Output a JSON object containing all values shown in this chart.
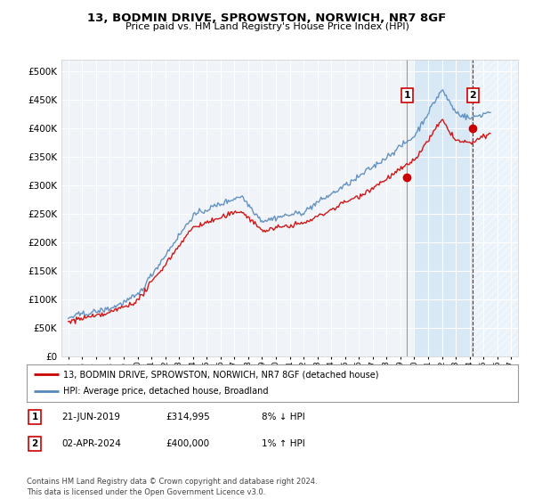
{
  "title": "13, BODMIN DRIVE, SPROWSTON, NORWICH, NR7 8GF",
  "subtitle": "Price paid vs. HM Land Registry's House Price Index (HPI)",
  "ytick_vals": [
    0,
    50000,
    100000,
    150000,
    200000,
    250000,
    300000,
    350000,
    400000,
    450000,
    500000
  ],
  "ylim": [
    0,
    520000
  ],
  "xlim_start": 1994.5,
  "xlim_end": 2027.5,
  "hpi_color": "#5588bb",
  "price_color": "#cc0000",
  "vline1_color": "#888888",
  "vline2_color": "#cc0000",
  "sale1_x": 2019.47,
  "sale1_y": 314995,
  "sale2_x": 2024.25,
  "sale2_y": 400000,
  "sale1_label": "1",
  "sale2_label": "2",
  "legend_line1": "13, BODMIN DRIVE, SPROWSTON, NORWICH, NR7 8GF (detached house)",
  "legend_line2": "HPI: Average price, detached house, Broadland",
  "table_row1": [
    "1",
    "21-JUN-2019",
    "£314,995",
    "8% ↓ HPI"
  ],
  "table_row2": [
    "2",
    "02-APR-2024",
    "£400,000",
    "1% ↑ HPI"
  ],
  "footer": "Contains HM Land Registry data © Crown copyright and database right 2024.\nThis data is licensed under the Open Government Licence v3.0.",
  "bg_color": "#ffffff",
  "plot_bg_color": "#f0f4f8",
  "grid_color": "#ffffff",
  "shade_color": "#d8e8f5",
  "shade_start": 2020.0,
  "xticks": [
    1995,
    1996,
    1997,
    1998,
    1999,
    2000,
    2001,
    2002,
    2003,
    2004,
    2005,
    2006,
    2007,
    2008,
    2009,
    2010,
    2011,
    2012,
    2013,
    2014,
    2015,
    2016,
    2017,
    2018,
    2019,
    2020,
    2021,
    2022,
    2023,
    2024,
    2025,
    2026,
    2027
  ]
}
